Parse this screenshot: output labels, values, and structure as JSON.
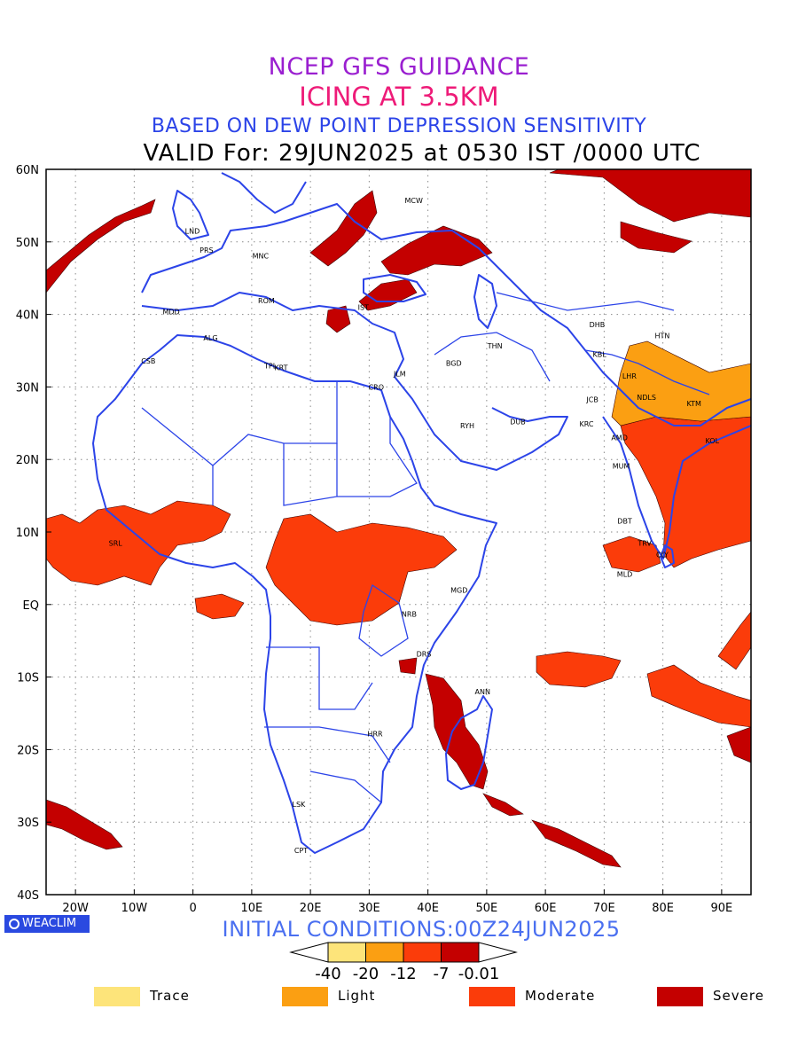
{
  "titles": {
    "line1": "NCEP GFS GUIDANCE",
    "line2": "ICING AT 3.5KM",
    "line3": "BASED ON DEW POINT DEPRESSION SENSITIVITY",
    "line4": "VALID For: 29JUN2025 at 0530 IST /0000 UTC"
  },
  "map": {
    "lon_range": [
      -25,
      95
    ],
    "lat_range": [
      -40,
      60
    ],
    "lat_ticks": [
      {
        "v": 60,
        "label": "60N"
      },
      {
        "v": 50,
        "label": "50N"
      },
      {
        "v": 40,
        "label": "40N"
      },
      {
        "v": 30,
        "label": "30N"
      },
      {
        "v": 20,
        "label": "20N"
      },
      {
        "v": 10,
        "label": "10N"
      },
      {
        "v": 0,
        "label": "EQ"
      },
      {
        "v": -10,
        "label": "10S"
      },
      {
        "v": -20,
        "label": "20S"
      },
      {
        "v": -30,
        "label": "30S"
      },
      {
        "v": -40,
        "label": "40S"
      }
    ],
    "lon_ticks": [
      {
        "v": -20,
        "label": "20W"
      },
      {
        "v": -10,
        "label": "10W"
      },
      {
        "v": 0,
        "label": "0"
      },
      {
        "v": 10,
        "label": "10E"
      },
      {
        "v": 20,
        "label": "20E"
      },
      {
        "v": 30,
        "label": "30E"
      },
      {
        "v": 40,
        "label": "40E"
      },
      {
        "v": 50,
        "label": "50E"
      },
      {
        "v": 60,
        "label": "60E"
      },
      {
        "v": 70,
        "label": "70E"
      },
      {
        "v": 80,
        "label": "80E"
      },
      {
        "v": 90,
        "label": "90E"
      }
    ],
    "gridlines": true,
    "coast_color": "#2c44e8",
    "cities": [
      {
        "name": "MCW",
        "lon": 37.6,
        "lat": 55.7
      },
      {
        "name": "LND",
        "lon": -0.1,
        "lat": 51.5
      },
      {
        "name": "PRS",
        "lon": 2.3,
        "lat": 48.9
      },
      {
        "name": "MNC",
        "lon": 11.5,
        "lat": 48.1
      },
      {
        "name": "ROM",
        "lon": 12.5,
        "lat": 41.9
      },
      {
        "name": "IST",
        "lon": 29.0,
        "lat": 41.0
      },
      {
        "name": "MDD",
        "lon": -3.7,
        "lat": 40.4
      },
      {
        "name": "ALG",
        "lon": 3.0,
        "lat": 36.8
      },
      {
        "name": "CSB",
        "lon": -7.6,
        "lat": 33.6
      },
      {
        "name": "TPL",
        "lon": 13.2,
        "lat": 32.9
      },
      {
        "name": "KRT",
        "lon": 15.0,
        "lat": 32.7
      },
      {
        "name": "JLM",
        "lon": 35.2,
        "lat": 31.8
      },
      {
        "name": "CRO",
        "lon": 31.2,
        "lat": 30.0
      },
      {
        "name": "BGD",
        "lon": 44.4,
        "lat": 33.3
      },
      {
        "name": "THN",
        "lon": 51.4,
        "lat": 35.7
      },
      {
        "name": "RYH",
        "lon": 46.7,
        "lat": 24.7
      },
      {
        "name": "DUB",
        "lon": 55.3,
        "lat": 25.2
      },
      {
        "name": "DHB",
        "lon": 68.8,
        "lat": 38.6
      },
      {
        "name": "HTN",
        "lon": 79.9,
        "lat": 37.1
      },
      {
        "name": "KBL",
        "lon": 69.2,
        "lat": 34.5
      },
      {
        "name": "LHR",
        "lon": 74.3,
        "lat": 31.5
      },
      {
        "name": "NDLS",
        "lon": 77.2,
        "lat": 28.6
      },
      {
        "name": "JCB",
        "lon": 68.0,
        "lat": 28.3
      },
      {
        "name": "KTM",
        "lon": 85.3,
        "lat": 27.7
      },
      {
        "name": "KRC",
        "lon": 67.0,
        "lat": 24.9
      },
      {
        "name": "AMD",
        "lon": 72.6,
        "lat": 23.0
      },
      {
        "name": "KOL",
        "lon": 88.4,
        "lat": 22.6
      },
      {
        "name": "MUM",
        "lon": 72.9,
        "lat": 19.1
      },
      {
        "name": "DBT",
        "lon": 73.5,
        "lat": 11.5
      },
      {
        "name": "CLY",
        "lon": 79.9,
        "lat": 6.9
      },
      {
        "name": "TRV",
        "lon": 76.9,
        "lat": 8.5
      },
      {
        "name": "MLD",
        "lon": 73.5,
        "lat": 4.2
      },
      {
        "name": "SRL",
        "lon": -13.2,
        "lat": 8.5
      },
      {
        "name": "MGD",
        "lon": 45.3,
        "lat": 2.0
      },
      {
        "name": "NRB",
        "lon": 36.8,
        "lat": -1.3
      },
      {
        "name": "DRS",
        "lon": 39.3,
        "lat": -6.8
      },
      {
        "name": "ANN",
        "lon": 49.3,
        "lat": -12.0
      },
      {
        "name": "HRR",
        "lon": 31.0,
        "lat": -17.8
      },
      {
        "name": "LSK",
        "lon": 18.0,
        "lat": -27.5
      },
      {
        "name": "CPT",
        "lon": 18.4,
        "lat": -33.9
      }
    ]
  },
  "initial_conditions": "INITIAL CONDITIONS:00Z24JUN2025",
  "colorbar": {
    "labels": [
      "-40",
      "-20",
      "-12",
      "-7",
      "-0.01"
    ],
    "colors": [
      "#fde47a",
      "#fb9f12",
      "#fb3c0a",
      "#c40000"
    ]
  },
  "legend": [
    {
      "label": "Trace",
      "color": "#fde47a"
    },
    {
      "label": "Light",
      "color": "#fb9f12"
    },
    {
      "label": "Moderate",
      "color": "#fb3c0a"
    },
    {
      "label": "Severe",
      "color": "#c40000"
    }
  ],
  "watermark": "WEACLIM"
}
